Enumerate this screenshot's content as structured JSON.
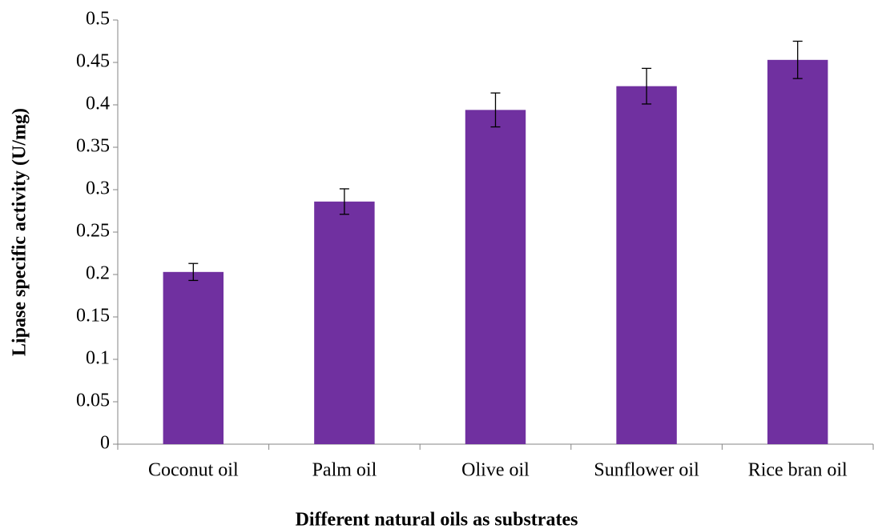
{
  "chart_data": {
    "type": "bar",
    "x_label": "Different natural oils as substrates",
    "y_label": "Lipase specific activity (U/mg)",
    "categories": [
      "Coconut oil",
      "Palm oil",
      "Olive oil",
      "Sunflower oil",
      "Rice bran oil"
    ],
    "values": [
      0.203,
      0.286,
      0.394,
      0.422,
      0.453
    ],
    "errors": [
      0.01,
      0.015,
      0.02,
      0.021,
      0.022
    ],
    "color": "#7030a0",
    "ylim": [
      0,
      0.5
    ],
    "yticks": [
      0,
      0.05,
      0.1,
      0.15,
      0.2,
      0.25,
      0.3,
      0.35,
      0.4,
      0.45,
      0.5
    ],
    "grid": false
  }
}
